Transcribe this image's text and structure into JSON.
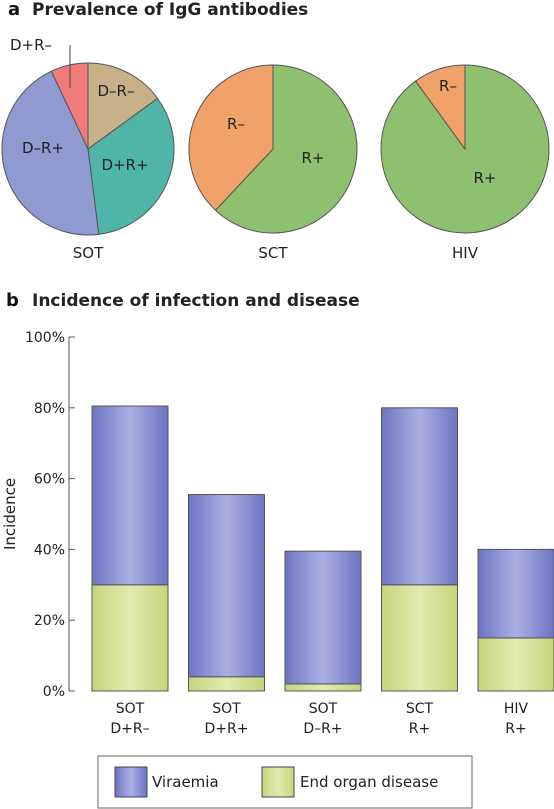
{
  "panel_a": {
    "letter": "a",
    "title": "Prevalence of IgG antibodies"
  },
  "panel_b": {
    "letter": "b",
    "title": "Incidence of infection and disease"
  },
  "colors": {
    "viraemia": "#7f86cc",
    "end_organ_disease": "#cfdc8c",
    "d_plus_r_minus": "#ef7b7b",
    "d_minus_r_minus": "#c8b089",
    "d_plus_r_plus": "#4fb5a6",
    "d_minus_r_plus": "#8e9ad0",
    "r_minus": "#f1a268",
    "r_plus": "#8fc070"
  },
  "chart_data": [
    {
      "type": "pie",
      "title": "SOT",
      "slices": [
        {
          "label": "D–R–",
          "value": 15,
          "color": "#c8b089"
        },
        {
          "label": "D+R+",
          "value": 33,
          "color": "#4fb5a6"
        },
        {
          "label": "D–R+",
          "value": 45,
          "color": "#8e9ad0"
        },
        {
          "label": "D+R–",
          "value": 7,
          "color": "#ef7b7b"
        }
      ]
    },
    {
      "type": "pie",
      "title": "SCT",
      "slices": [
        {
          "label": "R+",
          "value": 62,
          "color": "#8fc070"
        },
        {
          "label": "R–",
          "value": 38,
          "color": "#f1a268"
        }
      ]
    },
    {
      "type": "pie",
      "title": "HIV",
      "slices": [
        {
          "label": "R+",
          "value": 90,
          "color": "#8fc070"
        },
        {
          "label": "R–",
          "value": 10,
          "color": "#f1a268"
        }
      ]
    },
    {
      "type": "bar",
      "stacked": true,
      "title": "Incidence of infection and disease",
      "categories": [
        [
          "SOT",
          "D+R–"
        ],
        [
          "SOT",
          "D+R+"
        ],
        [
          "SOT",
          "D–R+"
        ],
        [
          "SCT",
          "R+"
        ],
        [
          "HIV",
          "R+"
        ]
      ],
      "series": [
        {
          "name": "End organ disease",
          "values": [
            30,
            4,
            2,
            30,
            15
          ]
        },
        {
          "name": "Viraemia",
          "values": [
            50.5,
            51.5,
            37.5,
            50,
            25
          ]
        }
      ],
      "ylabel": "Incidence",
      "ylim": [
        0,
        100
      ],
      "yticks": [
        "0%",
        "20%",
        "40%",
        "60%",
        "80%",
        "100%"
      ],
      "legend_position": "bottom",
      "legend": [
        "Viraemia",
        "End organ disease"
      ]
    }
  ]
}
